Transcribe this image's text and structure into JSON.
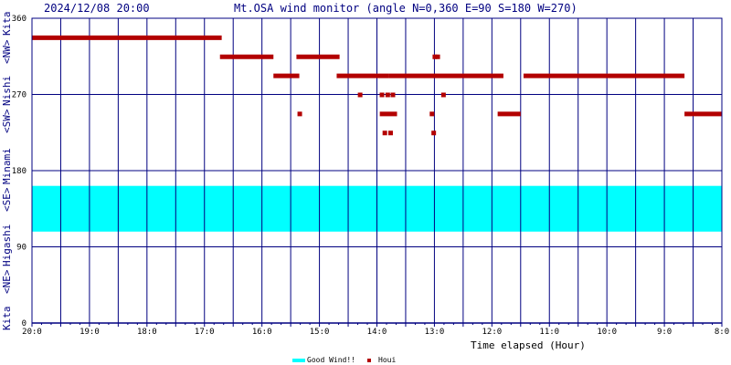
{
  "header": {
    "timestamp": "2024/12/08 20:00",
    "title": "Mt.OSA wind monitor (angle N=0,360 E=90 S=180 W=270)"
  },
  "side_label": {
    "bottom_kita": "Kita",
    "ne": "<NE>",
    "higashi": "Higashi",
    "se": "<SE>",
    "minami": "Minami",
    "sw": "<SW>",
    "nishi": "Nishi",
    "nw": "<NW>",
    "top_kita": "Kita"
  },
  "legend": {
    "good_wind": "Good Wind!!",
    "houi": "Houi"
  },
  "colors": {
    "axis": "#000080",
    "good_band": "#00ffff",
    "marker": "#b30000"
  },
  "chart_data": {
    "type": "scatter",
    "xlabel": "Time elapsed (Hour)",
    "x_ticks": [
      "20:0",
      "19:0",
      "18:0",
      "17:0",
      "16:0",
      "15:0",
      "14:0",
      "13:0",
      "12:0",
      "11:0",
      "10:0",
      "9:0",
      "8:0"
    ],
    "y_ticks": [
      "0",
      "90",
      "180",
      "270",
      "360"
    ],
    "ylim": [
      0,
      360
    ],
    "xlim_hours_from_20": [
      0,
      12
    ],
    "good_wind_band": [
      108,
      162
    ],
    "series": [
      {
        "name": "Houi",
        "segments": [
          {
            "x": [
              0.0,
              3.3
            ],
            "y": 337.5
          },
          {
            "x": [
              3.27,
              4.2
            ],
            "y": 315
          },
          {
            "x": [
              4.2,
              4.65
            ],
            "y": 292.5
          },
          {
            "x": [
              4.6,
              5.35
            ],
            "y": 315
          },
          {
            "x": [
              5.3,
              6.2
            ],
            "y": 292.5
          },
          {
            "x": [
              6.2,
              8.2
            ],
            "y": 292.5
          },
          {
            "x": [
              8.55,
              11.35
            ],
            "y": 292.5
          },
          {
            "x": [
              8.1,
              8.5
            ],
            "y": 247.5
          },
          {
            "x": [
              11.35,
              12.0
            ],
            "y": 247.5
          },
          {
            "x": [
              6.05,
              6.35
            ],
            "y": 247.5
          }
        ],
        "points": [
          {
            "x": 4.65,
            "y": 247.5
          },
          {
            "x": 5.7,
            "y": 270
          },
          {
            "x": 6.08,
            "y": 270
          },
          {
            "x": 6.18,
            "y": 270
          },
          {
            "x": 6.27,
            "y": 270
          },
          {
            "x": 6.13,
            "y": 225
          },
          {
            "x": 6.23,
            "y": 225
          },
          {
            "x": 6.95,
            "y": 247.5
          },
          {
            "x": 7.0,
            "y": 315
          },
          {
            "x": 7.05,
            "y": 315
          },
          {
            "x": 6.98,
            "y": 225
          },
          {
            "x": 7.15,
            "y": 270
          }
        ]
      }
    ]
  }
}
